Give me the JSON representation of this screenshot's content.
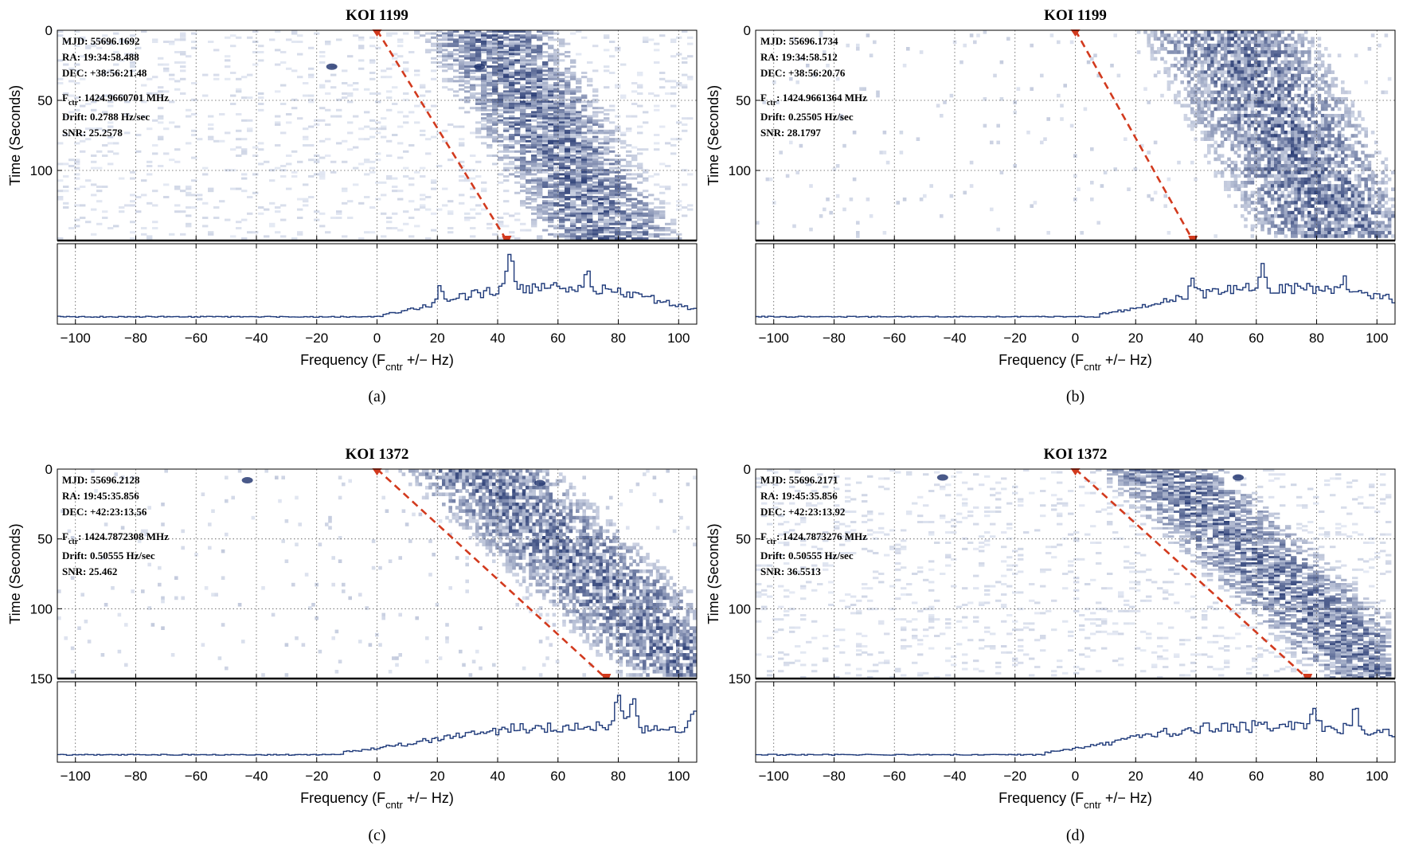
{
  "colors": {
    "cell_dark": "#1c2f6b",
    "hist_line": "#1f3a7a",
    "drift_line": "#d23a1e",
    "grid": "#555555"
  },
  "chart_data": [
    {
      "type": "heatmap",
      "panel": "(a)",
      "title": "KOI 1199",
      "xlabel": "Frequency (F_cntr +/− Hz)",
      "xlabel_main": "Frequency (F",
      "xlabel_sub": "cntr",
      "xlabel_tail": " +/− Hz)",
      "ylabel": "Time (Seconds)",
      "xlim": [
        -106,
        106
      ],
      "ylim": [
        0,
        150
      ],
      "xticks": [
        -100,
        -80,
        -60,
        -40,
        -20,
        0,
        20,
        40,
        60,
        80,
        100
      ],
      "yticks": [
        0,
        50,
        100
      ],
      "grid": true,
      "annotations": {
        "mjd": "MJD: 55696.1692",
        "ra": "RA: 19:34:58.488",
        "dec": "DEC: +38:56:21.48",
        "fctr_label": "F",
        "fctr_sub": "ctr",
        "fctr_value": ": 1424.9660701 MHz",
        "drift": "Drift: 0.2788 Hz/sec",
        "snr": "SNR: 25.2578"
      },
      "drift_line": {
        "x0": 0,
        "t0": 0,
        "x1": 43,
        "t1": 150
      },
      "signal": {
        "start": 13,
        "end": 62,
        "drift_hz_per_s": 0.2788,
        "style": "streak"
      },
      "histogram_peaks": [
        {
          "x": 44,
          "height": 1.0
        },
        {
          "x": 70,
          "height": 0.42
        },
        {
          "x": 21,
          "height": 0.45
        }
      ],
      "hotspots": [
        {
          "x": -15,
          "t": 26
        },
        {
          "x": 34,
          "t": 26
        }
      ]
    },
    {
      "type": "heatmap",
      "panel": "(b)",
      "title": "KOI 1199",
      "xlabel": "Frequency (F_cntr +/− Hz)",
      "xlabel_main": "Frequency (F",
      "xlabel_sub": "cntr",
      "xlabel_tail": " +/− Hz)",
      "ylabel": "Time (Seconds)",
      "xlim": [
        -106,
        106
      ],
      "ylim": [
        0,
        150
      ],
      "xticks": [
        -100,
        -80,
        -60,
        -40,
        -20,
        0,
        20,
        40,
        60,
        80,
        100
      ],
      "yticks": [
        0,
        50,
        100
      ],
      "grid": true,
      "annotations": {
        "mjd": "MJD: 55696.1734",
        "ra": "RA: 19:34:58.512",
        "dec": "DEC: +38:56:20.76",
        "fctr_label": "F",
        "fctr_sub": "ctr",
        "fctr_value": ": 1424.9661364 MHz",
        "drift": "Drift: 0.25505 Hz/sec",
        "snr": "SNR: 28.1797"
      },
      "drift_line": {
        "x0": 0,
        "t0": 0,
        "x1": 39,
        "t1": 150
      },
      "signal": {
        "start": 20,
        "end": 80,
        "drift_hz_per_s": 0.25505,
        "style": "speckle"
      },
      "histogram_peaks": [
        {
          "x": 62,
          "height": 0.55
        },
        {
          "x": 39,
          "height": 0.38
        },
        {
          "x": 89,
          "height": 0.3
        }
      ],
      "hotspots": []
    },
    {
      "type": "heatmap",
      "panel": "(c)",
      "title": "KOI 1372",
      "xlabel": "Frequency (F_cntr +/− Hz)",
      "xlabel_main": "Frequency (F",
      "xlabel_sub": "cntr",
      "xlabel_tail": " +/− Hz)",
      "ylabel": "Time (Seconds)",
      "xlim": [
        -106,
        106
      ],
      "ylim": [
        0,
        150
      ],
      "xticks": [
        -100,
        -80,
        -60,
        -40,
        -20,
        0,
        20,
        40,
        60,
        80,
        100
      ],
      "yticks": [
        0,
        50,
        100,
        150
      ],
      "grid": true,
      "annotations": {
        "mjd": "MJD: 55696.2128",
        "ra": "RA: 19:45:35.856",
        "dec": "DEC: +42:23:13.56",
        "fctr_label": "F",
        "fctr_sub": "ctr",
        "fctr_value": ": 1424.7872308 MHz",
        "drift": "Drift: 0.50555 Hz/sec",
        "snr": "SNR: 25.462"
      },
      "drift_line": {
        "x0": 0,
        "t0": 0,
        "x1": 76,
        "t1": 150
      },
      "signal": {
        "start": 5,
        "end": 60,
        "drift_hz_per_s": 0.50555,
        "style": "speckle"
      },
      "histogram_peaks": [
        {
          "x": 80,
          "height": 0.95
        },
        {
          "x": 85,
          "height": 0.9
        },
        {
          "x": 105,
          "height": 0.6
        }
      ],
      "hotspots": [
        {
          "x": -43,
          "t": 8
        },
        {
          "x": 54,
          "t": 10
        }
      ]
    },
    {
      "type": "heatmap",
      "panel": "(d)",
      "title": "KOI 1372",
      "xlabel": "Frequency (F_cntr +/− Hz)",
      "xlabel_main": "Frequency (F",
      "xlabel_sub": "cntr",
      "xlabel_tail": " +/− Hz)",
      "ylabel": "Time (Seconds)",
      "xlim": [
        -106,
        106
      ],
      "ylim": [
        0,
        150
      ],
      "xticks": [
        -100,
        -80,
        -60,
        -40,
        -20,
        0,
        20,
        40,
        60,
        80,
        100
      ],
      "yticks": [
        0,
        50,
        100,
        150
      ],
      "grid": true,
      "annotations": {
        "mjd": "MJD: 55696.2171",
        "ra": "RA: 19:45:35.856",
        "dec": "DEC: +42:23:13.92",
        "fctr_label": "F",
        "fctr_sub": "ctr",
        "fctr_value": ": 1424.7873276 MHz",
        "drift": "Drift: 0.50555 Hz/sec",
        "snr": "SNR: 36.5513"
      },
      "drift_line": {
        "x0": 0,
        "t0": 0,
        "x1": 77,
        "t1": 150
      },
      "signal": {
        "start": 5,
        "end": 53,
        "drift_hz_per_s": 0.50555,
        "style": "streak"
      },
      "histogram_peaks": [
        {
          "x": 79,
          "height": 0.62
        },
        {
          "x": 93,
          "height": 0.55
        }
      ],
      "hotspots": [
        {
          "x": -44,
          "t": 6
        },
        {
          "x": 54,
          "t": 6
        }
      ]
    }
  ]
}
